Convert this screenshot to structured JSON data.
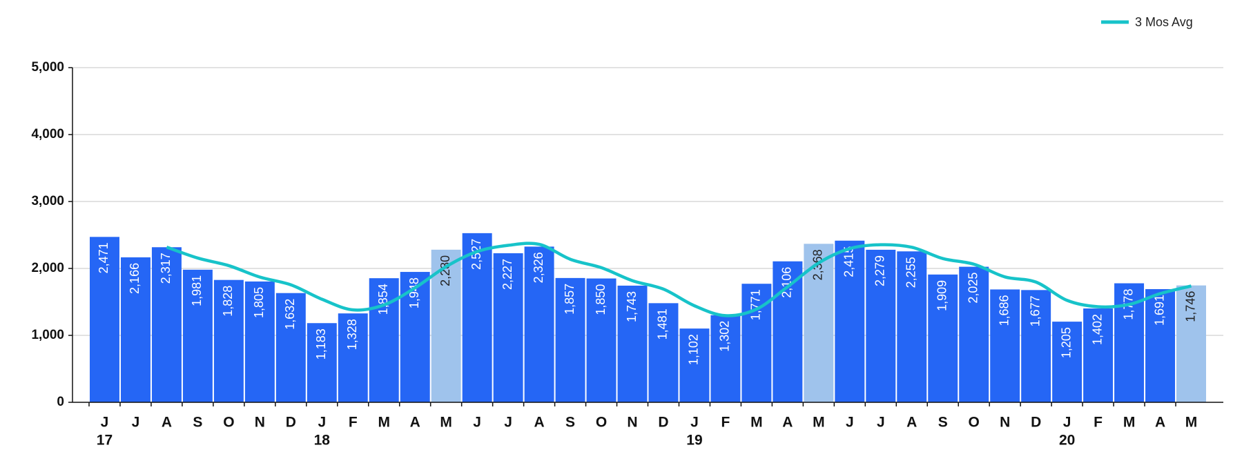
{
  "chart_data": {
    "type": "bar",
    "categories": [
      "J",
      "J",
      "A",
      "S",
      "O",
      "N",
      "D",
      "J",
      "F",
      "M",
      "A",
      "M",
      "J",
      "J",
      "A",
      "S",
      "O",
      "N",
      "D",
      "J",
      "F",
      "M",
      "A",
      "M",
      "J",
      "J",
      "A",
      "S",
      "O",
      "N",
      "D",
      "J",
      "F",
      "M",
      "A",
      "M"
    ],
    "years": [
      "17",
      null,
      null,
      null,
      null,
      null,
      null,
      "18",
      null,
      null,
      null,
      null,
      null,
      null,
      null,
      null,
      null,
      null,
      null,
      "19",
      null,
      null,
      null,
      null,
      null,
      null,
      null,
      null,
      null,
      null,
      null,
      "20",
      null,
      null,
      null,
      null
    ],
    "values": [
      2471,
      2166,
      2317,
      1981,
      1828,
      1805,
      1632,
      1183,
      1328,
      1854,
      1948,
      2280,
      2527,
      2227,
      2326,
      1857,
      1850,
      1743,
      1481,
      1102,
      1302,
      1771,
      2106,
      2368,
      2415,
      2279,
      2255,
      1909,
      2025,
      1686,
      1677,
      1205,
      1402,
      1778,
      1691,
      1746
    ],
    "value_labels": [
      "2,471",
      "2,166",
      "2,317",
      "1,981",
      "1,828",
      "1,805",
      "1,632",
      "1,183",
      "1,328",
      "1,854",
      "1,948",
      "2,280",
      "2,527",
      "2,227",
      "2,326",
      "1,857",
      "1,850",
      "1,743",
      "1,481",
      "1,102",
      "1,302",
      "1,771",
      "2,106",
      "2,368",
      "2,415",
      "2,279",
      "2,255",
      "1,909",
      "2,025",
      "1,686",
      "1,677",
      "1,205",
      "1,402",
      "1,778",
      "1,691",
      "1,746"
    ],
    "colors": [
      "#2566f5",
      "#2566f5",
      "#2566f5",
      "#2566f5",
      "#2566f5",
      "#2566f5",
      "#2566f5",
      "#2566f5",
      "#2566f5",
      "#2566f5",
      "#2566f5",
      "#9fc3ec",
      "#2566f5",
      "#2566f5",
      "#2566f5",
      "#2566f5",
      "#2566f5",
      "#2566f5",
      "#2566f5",
      "#2566f5",
      "#2566f5",
      "#2566f5",
      "#2566f5",
      "#9fc3ec",
      "#2566f5",
      "#2566f5",
      "#2566f5",
      "#2566f5",
      "#2566f5",
      "#2566f5",
      "#2566f5",
      "#2566f5",
      "#2566f5",
      "#2566f5",
      "#2566f5",
      "#9fc3ec"
    ],
    "line": {
      "name": "3 Mos Avg",
      "color": "#17c3c9",
      "values": [
        null,
        null,
        2318,
        2155,
        2042,
        1871,
        1755,
        1540,
        1381,
        1455,
        1710,
        2027,
        2252,
        2345,
        2360,
        2137,
        2011,
        1817,
        1691,
        1442,
        1295,
        1392,
        1726,
        2082,
        2296,
        2354,
        2316,
        2148,
        2063,
        1873,
        1796,
        1523,
        1428,
        1462,
        1624,
        1738
      ]
    },
    "ylim": [
      0,
      5000
    ],
    "yticks": [
      {
        "value": 0,
        "label": "0"
      },
      {
        "value": 1000,
        "label": "1,000"
      },
      {
        "value": 2000,
        "label": "2,000"
      },
      {
        "value": 3000,
        "label": "3,000"
      },
      {
        "value": 4000,
        "label": "4,000"
      },
      {
        "value": 5000,
        "label": "5,000"
      }
    ],
    "grid": true,
    "legend": "top-right"
  }
}
